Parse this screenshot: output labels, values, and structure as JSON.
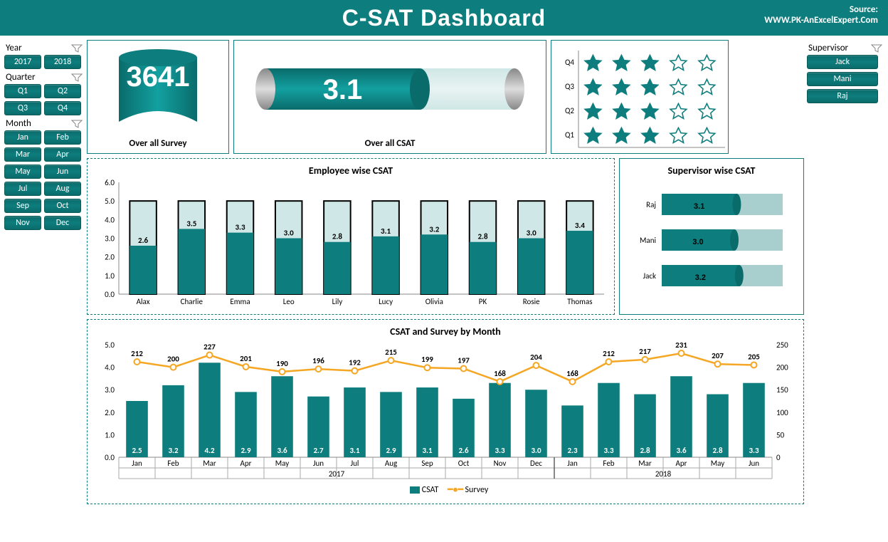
{
  "header": {
    "title": "C-SAT Dashboard",
    "source_label": "Source:",
    "source_url": "WWW.PK-AnExcelExpert.Com"
  },
  "colors": {
    "primary": "#0e7d7d",
    "primary_light": "#b8dedc",
    "accent": "#f5a623",
    "silver": "#b0b0b0"
  },
  "slicers": {
    "year": {
      "label": "Year",
      "items": [
        "2017",
        "2018"
      ]
    },
    "quarter": {
      "label": "Quarter",
      "items": [
        "Q1",
        "Q2",
        "Q3",
        "Q4"
      ]
    },
    "month": {
      "label": "Month",
      "items": [
        "Jan",
        "Feb",
        "Mar",
        "Apr",
        "May",
        "Jun",
        "Jul",
        "Aug",
        "Sep",
        "Oct",
        "Nov",
        "Dec"
      ]
    },
    "supervisor": {
      "label": "Supervisor",
      "items": [
        "Jack",
        "Mani",
        "Raj"
      ]
    }
  },
  "kpi": {
    "survey": {
      "value": "3641",
      "label": "Over all Survey"
    },
    "csat": {
      "value": "3.1",
      "label": "Over all CSAT",
      "max": 5.0,
      "fill": 3.1
    },
    "stars": {
      "rows": [
        {
          "label": "Q4",
          "filled": 3
        },
        {
          "label": "Q3",
          "filled": 3
        },
        {
          "label": "Q2",
          "filled": 3
        },
        {
          "label": "Q1",
          "filled": 3
        }
      ],
      "max": 5
    }
  },
  "employee_chart": {
    "title": "Employee  wise CSAT",
    "ylim": [
      0,
      6
    ],
    "ytick": 1,
    "max_bar": 5.0,
    "categories": [
      "Alax",
      "Charlie",
      "Emma",
      "Leo",
      "Lily",
      "Lucy",
      "Olivia",
      "PK",
      "Rosie",
      "Thomas"
    ],
    "values": [
      2.6,
      3.5,
      3.3,
      3.0,
      2.8,
      3.1,
      3.2,
      2.8,
      3.0,
      3.4
    ],
    "fill_color": "#0e7d7d",
    "back_color": "#cfe7e6",
    "border_color": "#000"
  },
  "supervisor_chart": {
    "title": "Supervisor  wise CSAT",
    "rows": [
      {
        "label": "Raj",
        "value": 3.1
      },
      {
        "label": "Mani",
        "value": 3.0
      },
      {
        "label": "Jack",
        "value": 3.2
      }
    ],
    "max": 5.0,
    "fill_color": "#0e7d7d",
    "back_color": "#a8cfcd"
  },
  "monthly_chart": {
    "title": "CSAT and Survey by Month",
    "y1": {
      "lim": [
        0,
        5
      ],
      "step": 1
    },
    "y2": {
      "lim": [
        0,
        250
      ],
      "step": 50
    },
    "groups": [
      {
        "year": "2017",
        "months": [
          "Jan",
          "Feb",
          "Mar",
          "Apr",
          "May",
          "Jun",
          "Jul",
          "Aug",
          "Sep",
          "Oct",
          "Nov",
          "Dec"
        ]
      },
      {
        "year": "2018",
        "months": [
          "Jan",
          "Feb",
          "Mar",
          "Apr",
          "May",
          "Jun"
        ]
      }
    ],
    "csat": [
      2.5,
      3.2,
      4.2,
      2.9,
      3.6,
      2.7,
      3.1,
      2.9,
      3.1,
      2.6,
      3.3,
      3.0,
      2.3,
      3.3,
      2.8,
      3.6,
      2.8,
      3.3
    ],
    "survey": [
      212,
      200,
      227,
      201,
      190,
      196,
      192,
      215,
      199,
      197,
      168,
      204,
      168,
      212,
      217,
      231,
      207,
      205
    ],
    "bar_color": "#0e7d7d",
    "line_color": "#f5a623",
    "legend": {
      "csat": "CSAT",
      "survey": "Survey"
    }
  }
}
